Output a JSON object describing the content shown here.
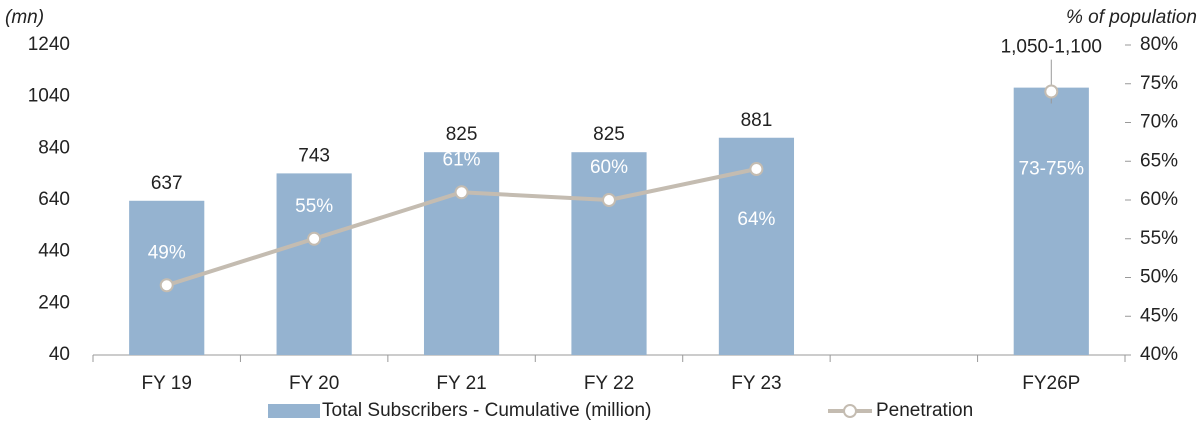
{
  "chart_data": {
    "type": "bar_line",
    "ylabel": "(mn)",
    "y2label": "% of population",
    "categories": [
      "FY 19",
      "FY 20",
      "FY 21",
      "FY 22",
      "FY 23",
      null,
      "FY26P"
    ],
    "series": [
      {
        "name": "Total Subscribers - Cumulative (million)",
        "color": "#95b3d0",
        "values": [
          637,
          743,
          825,
          825,
          881,
          null,
          1075
        ],
        "value_labels": [
          "637",
          "743",
          "825",
          "825",
          "881",
          null,
          "1,050-1,100"
        ]
      },
      {
        "name": "Penetration",
        "color": "#c4bcb1",
        "axis": "y2",
        "values": [
          49,
          55,
          61,
          60,
          64,
          null,
          74
        ],
        "value_labels": [
          "49%",
          "55%",
          "61%",
          "60%",
          "64%",
          null,
          "73-75%"
        ]
      }
    ],
    "ylim": [
      40,
      1240
    ],
    "yticks": [
      40,
      240,
      440,
      640,
      840,
      1040,
      1240
    ],
    "y2lim": [
      40,
      80
    ],
    "y2ticks": [
      {
        "value": 40,
        "label": "40%"
      },
      {
        "value": 45,
        "label": "45%"
      },
      {
        "value": 50,
        "label": "50%"
      },
      {
        "value": 55,
        "label": "55%"
      },
      {
        "value": 60,
        "label": "60%"
      },
      {
        "value": 65,
        "label": "65%"
      },
      {
        "value": 70,
        "label": "70%"
      },
      {
        "value": 75,
        "label": "75%"
      },
      {
        "value": 80,
        "label": "80%"
      }
    ]
  }
}
